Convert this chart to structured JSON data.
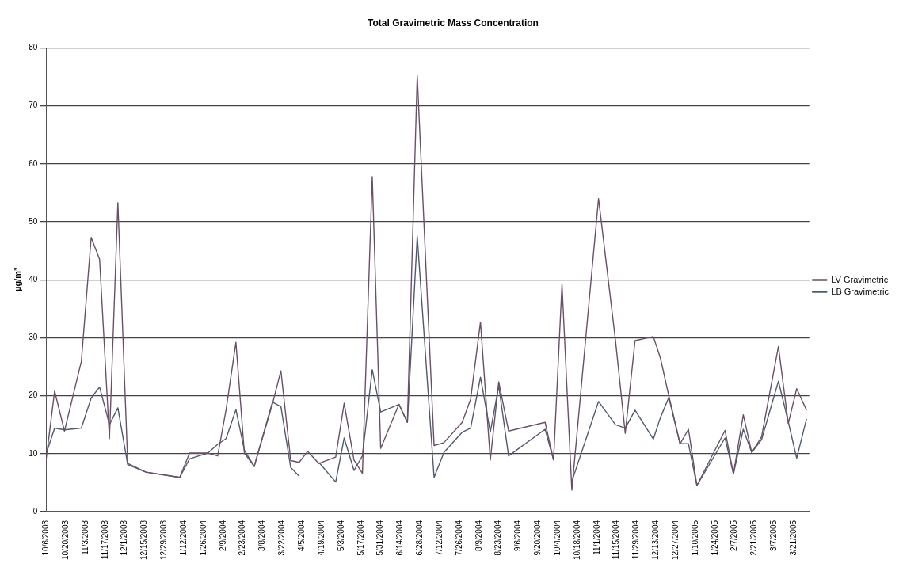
{
  "chart_data": {
    "type": "line",
    "title": "Total Gravimetric Mass Concentration",
    "ylabel": "µg/m³",
    "x": [
      "2003-10-06",
      "2003-10-12",
      "2003-10-19",
      "2003-10-31",
      "2003-11-07",
      "2003-11-13",
      "2003-11-20",
      "2003-11-26",
      "2003-12-03",
      "2003-12-16",
      "2004-01-09",
      "2004-01-16",
      "2004-01-29",
      "2004-02-05",
      "2004-02-11",
      "2004-02-18",
      "2004-02-24",
      "2004-03-02",
      "2004-03-15",
      "2004-03-21",
      "2004-03-28",
      "2004-04-03",
      "2004-04-09",
      "2004-04-17",
      "2004-04-29",
      "2004-05-05",
      "2004-05-12",
      "2004-05-18",
      "2004-05-25",
      "2004-05-31",
      "2004-06-13",
      "2004-06-19",
      "2004-06-26",
      "2004-07-08",
      "2004-07-15",
      "2004-07-28",
      "2004-08-03",
      "2004-08-10",
      "2004-08-17",
      "2004-08-23",
      "2004-08-30",
      "2004-09-25",
      "2004-10-01",
      "2004-10-07",
      "2004-10-14",
      "2004-11-02",
      "2004-11-14",
      "2004-11-21",
      "2004-11-28",
      "2004-12-11",
      "2004-12-16",
      "2004-12-22",
      "2004-12-30",
      "2005-01-05",
      "2005-01-11",
      "2005-01-31",
      "2005-02-06",
      "2005-02-13",
      "2005-02-19",
      "2005-02-26",
      "2005-03-10",
      "2005-03-17",
      "2005-03-23",
      "2005-03-30"
    ],
    "series": [
      {
        "name": "LV Gravimetric",
        "color": "#6b4f66",
        "values": [
          9.1,
          20.8,
          13.9,
          25.9,
          47.3,
          43.5,
          12.6,
          53.3,
          8.3,
          6.8,
          5.9,
          10.1,
          10.1,
          9.6,
          17.6,
          29.2,
          10.1,
          7.8,
          18.6,
          24.3,
          8.8,
          8.5,
          10.4,
          8.3,
          9.4,
          18.7,
          8.9,
          6.6,
          57.8,
          10.9,
          18.5,
          15.4,
          75.2,
          11.4,
          11.9,
          15.4,
          19.4,
          32.7,
          8.9,
          22.4,
          13.9,
          15.4,
          8.9,
          39.2,
          3.7,
          54.0,
          29.7,
          13.5,
          29.5,
          30.2,
          26.5,
          20.0,
          11.7,
          14.2,
          4.5,
          14.0,
          6.5,
          16.7,
          10.2,
          12.9,
          28.5,
          15.2,
          21.2,
          17.5
        ]
      },
      {
        "name": "LB Gravimetric",
        "color": "#4f5a70",
        "values": [
          10.0,
          14.4,
          14.1,
          14.4,
          19.6,
          21.5,
          15.0,
          17.9,
          8.1,
          6.8,
          5.9,
          9.1,
          10.1,
          11.6,
          12.6,
          17.6,
          10.6,
          7.8,
          18.9,
          18.1,
          7.6,
          6.1,
          null,
          8.5,
          5.1,
          12.7,
          7.1,
          9.6,
          24.5,
          17.2,
          18.5,
          15.4,
          47.5,
          5.9,
          10.2,
          13.7,
          14.4,
          23.2,
          13.7,
          21.7,
          9.6,
          14.2,
          8.9,
          null,
          5.2,
          19.0,
          15.0,
          14.4,
          17.5,
          12.5,
          16.2,
          19.7,
          11.7,
          11.7,
          4.5,
          12.7,
          6.5,
          14.2,
          10.2,
          12.4,
          22.5,
          15.5,
          9.2,
          16.0
        ]
      }
    ],
    "xlim": [
      "2003-10-06",
      "2005-04-01"
    ],
    "xticks": [
      {
        "value": "2003-10-06",
        "label": "10/6/2003"
      },
      {
        "value": "2003-10-20",
        "label": "10/20/2003"
      },
      {
        "value": "2003-11-03",
        "label": "11/3/2003"
      },
      {
        "value": "2003-11-17",
        "label": "11/17/2003"
      },
      {
        "value": "2003-12-01",
        "label": "12/1/2003"
      },
      {
        "value": "2003-12-15",
        "label": "12/15/2003"
      },
      {
        "value": "2003-12-29",
        "label": "12/29/2003"
      },
      {
        "value": "2004-01-12",
        "label": "1/12/2004"
      },
      {
        "value": "2004-01-26",
        "label": "1/26/2004"
      },
      {
        "value": "2004-02-09",
        "label": "2/9/2004"
      },
      {
        "value": "2004-02-23",
        "label": "2/23/2004"
      },
      {
        "value": "2004-03-08",
        "label": "3/8/2004"
      },
      {
        "value": "2004-03-22",
        "label": "3/22/2004"
      },
      {
        "value": "2004-04-05",
        "label": "4/5/2004"
      },
      {
        "value": "2004-04-19",
        "label": "4/19/2004"
      },
      {
        "value": "2004-05-03",
        "label": "5/3/2004"
      },
      {
        "value": "2004-05-17",
        "label": "5/17/2004"
      },
      {
        "value": "2004-05-31",
        "label": "5/31/2004"
      },
      {
        "value": "2004-06-14",
        "label": "6/14/2004"
      },
      {
        "value": "2004-06-28",
        "label": "6/28/2004"
      },
      {
        "value": "2004-07-12",
        "label": "7/12/2004"
      },
      {
        "value": "2004-07-26",
        "label": "7/26/2004"
      },
      {
        "value": "2004-08-09",
        "label": "8/9/2004"
      },
      {
        "value": "2004-08-23",
        "label": "8/23/2004"
      },
      {
        "value": "2004-09-06",
        "label": "9/6/2004"
      },
      {
        "value": "2004-09-20",
        "label": "9/20/2004"
      },
      {
        "value": "2004-10-04",
        "label": "10/4/2004"
      },
      {
        "value": "2004-10-18",
        "label": "10/18/2004"
      },
      {
        "value": "2004-11-01",
        "label": "11/1/2004"
      },
      {
        "value": "2004-11-15",
        "label": "11/15/2004"
      },
      {
        "value": "2004-11-29",
        "label": "11/29/2004"
      },
      {
        "value": "2004-12-13",
        "label": "12/13/2004"
      },
      {
        "value": "2004-12-27",
        "label": "12/27/2004"
      },
      {
        "value": "2005-01-10",
        "label": "1/10/2005"
      },
      {
        "value": "2005-01-24",
        "label": "1/24/2005"
      },
      {
        "value": "2005-02-07",
        "label": "2/7/2005"
      },
      {
        "value": "2005-02-21",
        "label": "2/21/2005"
      },
      {
        "value": "2005-03-07",
        "label": "3/7/2005"
      },
      {
        "value": "2005-03-21",
        "label": "3/21/2005"
      }
    ],
    "ylim": [
      0,
      80
    ],
    "yticks": [
      0,
      10,
      20,
      30,
      40,
      50,
      60,
      70,
      80
    ],
    "grid": "y",
    "legend": "right",
    "marker": "none",
    "line_style": "solid"
  }
}
